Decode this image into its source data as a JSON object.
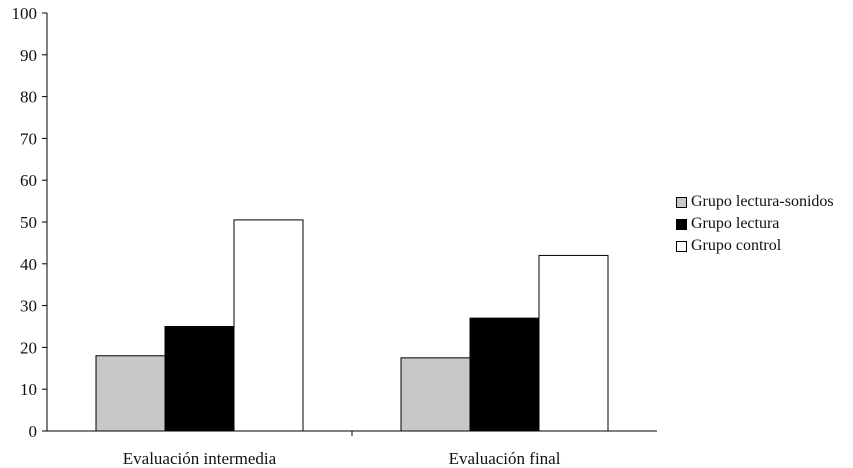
{
  "chart_data": {
    "type": "bar",
    "categories": [
      "Evaluación intermedia",
      "Evaluación final"
    ],
    "series": [
      {
        "name": "Grupo lectura-sonidos",
        "values": [
          18,
          17.5
        ],
        "color": "#c8c8c8"
      },
      {
        "name": "Grupo lectura",
        "values": [
          25,
          27
        ],
        "color": "#000000"
      },
      {
        "name": "Grupo control",
        "values": [
          50.5,
          42
        ],
        "color": "#ffffff"
      }
    ],
    "yticks": [
      "0",
      "10",
      "20",
      "30",
      "40",
      "50",
      "60",
      "70",
      "80",
      "90",
      "100"
    ],
    "ylim": [
      0,
      100
    ],
    "grid": false,
    "legend_position": "right"
  }
}
